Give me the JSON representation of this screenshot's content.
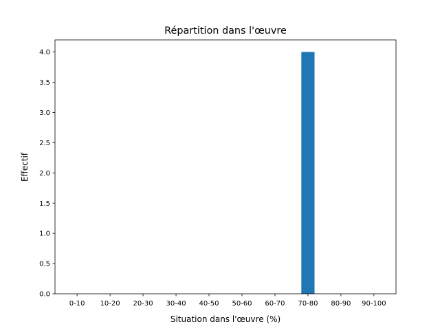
{
  "chart_data": {
    "type": "bar",
    "title": "Répartition dans l'œuvre",
    "xlabel": "Situation dans l'œuvre (%)",
    "ylabel": "Effectif",
    "categories": [
      "0-10",
      "10-20",
      "20-30",
      "30-40",
      "40-50",
      "50-60",
      "60-70",
      "70-80",
      "80-90",
      "90-100"
    ],
    "values": [
      0,
      0,
      0,
      0,
      0,
      0,
      0,
      4,
      0,
      0
    ],
    "bar_width": 0.4,
    "ylim": [
      0,
      4.2
    ],
    "yticks": [
      0.0,
      0.5,
      1.0,
      1.5,
      2.0,
      2.5,
      3.0,
      3.5,
      4.0
    ],
    "ytick_labels": [
      "0.0",
      "0.5",
      "1.0",
      "1.5",
      "2.0",
      "2.5",
      "3.0",
      "3.5",
      "4.0"
    ],
    "grid": false,
    "bar_color": "#1f77b4"
  }
}
